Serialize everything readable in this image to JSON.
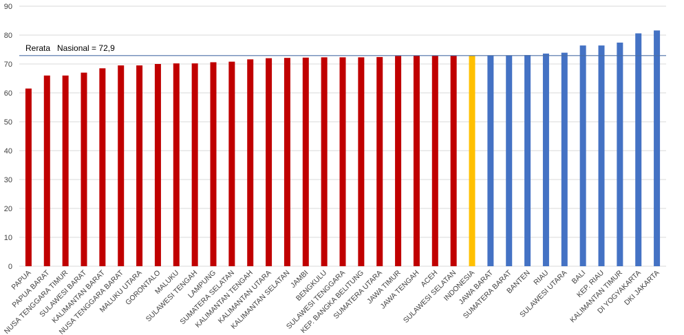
{
  "chart_data": {
    "type": "bar",
    "title": "",
    "xlabel": "",
    "ylabel": "",
    "ylim": [
      0,
      90
    ],
    "yticks": [
      0,
      10,
      20,
      30,
      40,
      50,
      60,
      70,
      80,
      90
    ],
    "grid": true,
    "categories": [
      "PAPUA",
      "PAPUA BARAT",
      "NUSA TENGGARA TIMUR",
      "SULAWESI BARAT",
      "KALIMANTAN BARAT",
      "NUSA TENGGARA BARAT",
      "MALUKU UTARA",
      "GORONTALO",
      "MALUKU",
      "SULAWESI TENGAH",
      "LAMPUNG",
      "SUMATERA SELATAN",
      "KALIMANTAN TENGAH",
      "KALIMANTAN UTARA",
      "KALIMANTAN SELATAN",
      "JAMBI",
      "BENGKULU",
      "SULAWESI TENGGARA",
      "KEP. BANGKA BELITUNG",
      "SUMATERA UTARA",
      "JAWA TIMUR",
      "JAWA TENGAH",
      "ACEH",
      "SULAWESI SELATAN",
      "INDONESIA",
      "JAWA BARAT",
      "SUMATERA BARAT",
      "BANTEN",
      "RIAU",
      "SULAWESI UTARA",
      "BALI",
      "KEP. RIAU",
      "KALIMANTAN TIMUR",
      "DI YOGYAKARTA",
      "DKI JAKARTA"
    ],
    "values": [
      61.5,
      66.0,
      66.0,
      67.0,
      68.5,
      69.5,
      69.5,
      70.0,
      70.2,
      70.2,
      70.6,
      70.8,
      71.6,
      72.0,
      72.1,
      72.2,
      72.3,
      72.3,
      72.3,
      72.4,
      72.8,
      72.9,
      72.9,
      72.9,
      72.9,
      73.0,
      73.0,
      73.1,
      73.6,
      73.9,
      76.4,
      76.4,
      77.4,
      80.6,
      81.6
    ],
    "colors": {
      "below_average": "#c00000",
      "national": "#ffc000",
      "above_average": "#4472c4",
      "reference_line": "#4a6fa5",
      "grid": "#d9d9d9"
    },
    "bar_groups": [
      "below",
      "below",
      "below",
      "below",
      "below",
      "below",
      "below",
      "below",
      "below",
      "below",
      "below",
      "below",
      "below",
      "below",
      "below",
      "below",
      "below",
      "below",
      "below",
      "below",
      "below",
      "below",
      "below",
      "below",
      "national",
      "above",
      "above",
      "above",
      "above",
      "above",
      "above",
      "above",
      "above",
      "above",
      "above"
    ],
    "reference_line": {
      "value": 72.9,
      "label": "Rerata   Nasional = 72,9"
    },
    "legend": "none"
  }
}
